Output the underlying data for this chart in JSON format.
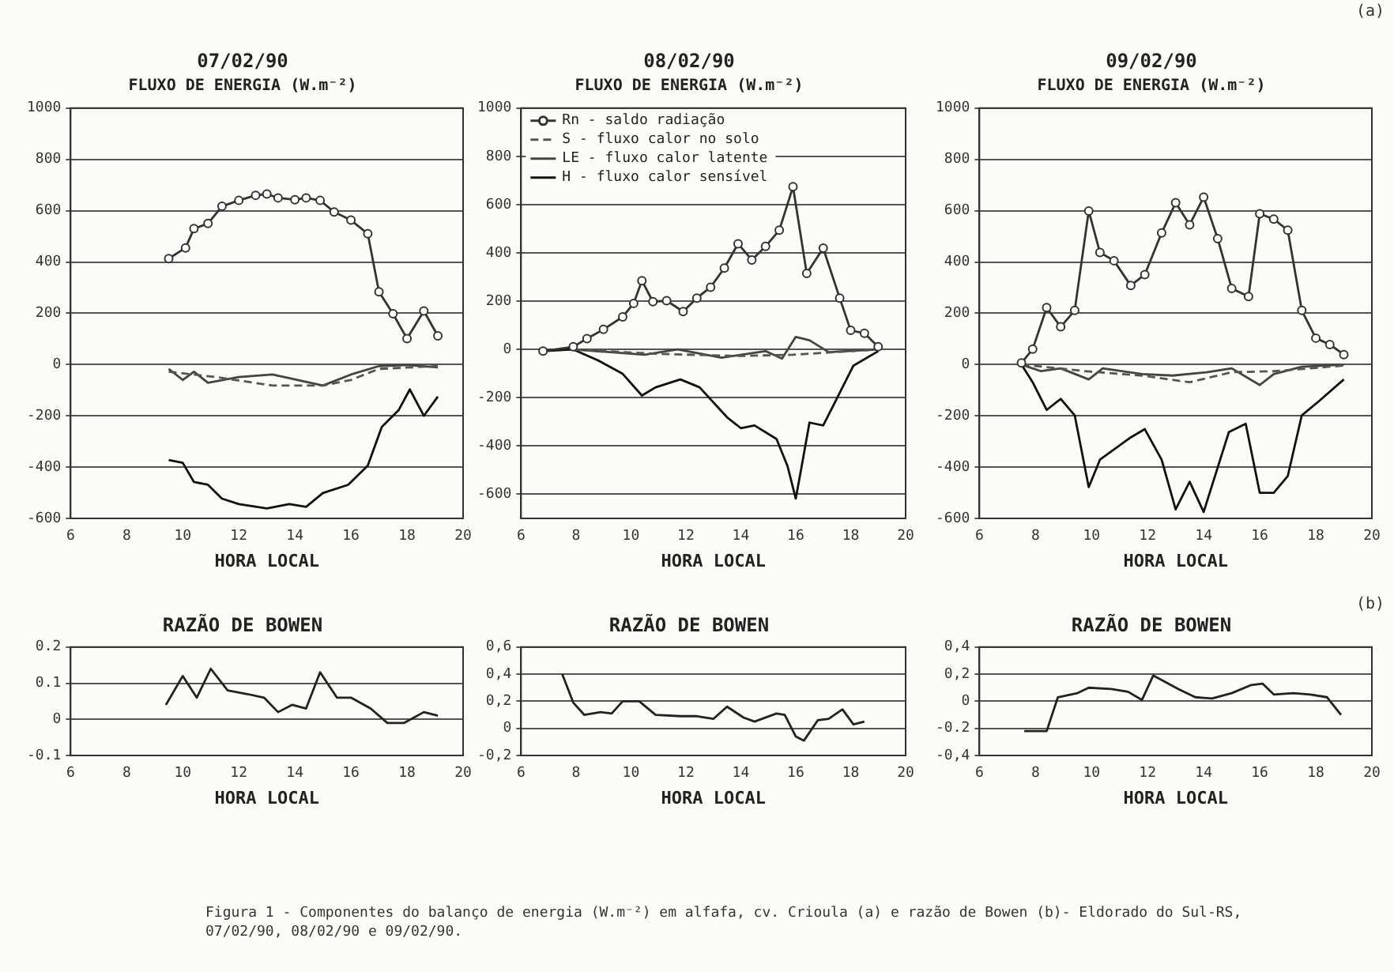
{
  "chart_data": [
    {
      "type": "line",
      "title": "07/02/90",
      "subtitle": "FLUXO DE ENERGIA (W.m⁻²)",
      "xlabel": "HORA LOCAL",
      "xlim": [
        6,
        20
      ],
      "xticks": [
        6,
        8,
        10,
        12,
        14,
        16,
        18,
        20
      ],
      "ylim": [
        -600,
        1000
      ],
      "yticks": [
        -600,
        -400,
        -200,
        0,
        200,
        400,
        600,
        800,
        1000
      ],
      "grid": "y",
      "legend": false,
      "series": [
        {
          "color": "#333333",
          "marker": "circle",
          "line_style": "solid",
          "x": [
            9.5,
            10.1,
            10.4,
            10.9,
            11.4,
            12,
            12.6,
            13,
            13.4,
            14,
            14.4,
            14.9,
            15.4,
            16,
            16.6,
            17,
            17.5,
            18,
            18.6,
            19.1
          ],
          "values": [
            413,
            455,
            530,
            550,
            617,
            640,
            660,
            665,
            650,
            643,
            650,
            640,
            595,
            563,
            510,
            284,
            198,
            101,
            209,
            112
          ]
        },
        {
          "color": "#555555",
          "marker": "none",
          "line_style": "dashed",
          "x": [
            9.5,
            11.2,
            13.2,
            15,
            16,
            17,
            19.1
          ],
          "values": [
            -28,
            -49,
            -82,
            -82,
            -60,
            -17,
            -6
          ]
        },
        {
          "color": "#444444",
          "marker": "none",
          "line_style": "solid",
          "x": [
            9.5,
            10,
            10.4,
            10.9,
            12,
            13.2,
            15,
            16,
            17,
            18,
            19.1
          ],
          "values": [
            -17,
            -60,
            -28,
            -71,
            -49,
            -39,
            -82,
            -39,
            -6,
            -2,
            -11
          ]
        },
        {
          "color": "#111111",
          "marker": "none",
          "line_style": "solid",
          "x": [
            9.5,
            10,
            10.4,
            10.9,
            11.4,
            12,
            13,
            13.8,
            14.4,
            15,
            15.9,
            16.6,
            17.1,
            17.7,
            18.1,
            18.6,
            19.1
          ],
          "values": [
            -372,
            -383,
            -458,
            -469,
            -523,
            -544,
            -561,
            -544,
            -555,
            -501,
            -469,
            -394,
            -243,
            -178,
            -97,
            -200,
            -125
          ]
        }
      ]
    },
    {
      "type": "line",
      "title": "08/02/90",
      "subtitle": "FLUXO DE ENERGIA (W.m⁻²)",
      "xlabel": "HORA LOCAL",
      "xlim": [
        6,
        20
      ],
      "xticks": [
        6,
        8,
        10,
        12,
        14,
        16,
        18,
        20
      ],
      "ylim": [
        -700,
        1000
      ],
      "yticks": [
        -600,
        -400,
        -200,
        0,
        200,
        400,
        600,
        800,
        1000
      ],
      "grid": "y",
      "legend": "top left",
      "series": [
        {
          "name": "Rn - saldo radiação",
          "color": "#333333",
          "marker": "circle",
          "line_style": "solid",
          "x": [
            6.8,
            7.9,
            8.4,
            9,
            9.7,
            10.1,
            10.4,
            10.8,
            11.3,
            11.9,
            12.4,
            12.9,
            13.4,
            13.9,
            14.4,
            14.9,
            15.4,
            15.9,
            16.4,
            17,
            17.6,
            18,
            18.5,
            19
          ],
          "values": [
            -7,
            11,
            45,
            83,
            135,
            191,
            285,
            198,
            202,
            157,
            213,
            258,
            337,
            438,
            371,
            427,
            494,
            674,
            315,
            420,
            213,
            79,
            67,
            11
          ]
        },
        {
          "name": "S - fluxo calor no solo",
          "color": "#555555",
          "marker": "none",
          "line_style": "dashed",
          "x": [
            7.9,
            10.9,
            13.9,
            15.9,
            17.4,
            19
          ],
          "values": [
            0,
            -18,
            -27,
            -22,
            -11,
            0
          ]
        },
        {
          "name": "LE - fluxo calor latente",
          "color": "#444444",
          "marker": "none",
          "line_style": "solid",
          "x": [
            7.9,
            10.5,
            11.7,
            13.3,
            14.9,
            15.5,
            16,
            16.5,
            17.2,
            19
          ],
          "values": [
            0,
            -22,
            0,
            -34,
            -7,
            -38,
            52,
            38,
            -11,
            0
          ]
        },
        {
          "name": "H - fluxo calor sensível",
          "color": "#111111",
          "marker": "none",
          "line_style": "solid",
          "x": [
            6.8,
            7.9,
            8.8,
            9.7,
            10.4,
            10.9,
            11.8,
            12.5,
            13.5,
            14,
            14.5,
            15.3,
            15.7,
            16,
            16.2,
            16.5,
            17,
            17.6,
            18.1,
            19
          ],
          "values": [
            -7,
            0,
            -45,
            -101,
            -191,
            -157,
            -124,
            -157,
            -281,
            -326,
            -315,
            -371,
            -483,
            -618,
            -494,
            -303,
            -315,
            -180,
            -67,
            -7
          ]
        }
      ]
    },
    {
      "type": "line",
      "title": "09/02/90",
      "subtitle": "FLUXO DE ENERGIA (W.m⁻²)",
      "xlabel": "HORA LOCAL",
      "xlim": [
        6,
        20
      ],
      "xticks": [
        6,
        8,
        10,
        12,
        14,
        16,
        18,
        20
      ],
      "ylim": [
        -600,
        1000
      ],
      "yticks": [
        -600,
        -400,
        -200,
        0,
        200,
        400,
        600,
        800,
        1000
      ],
      "grid": "y",
      "legend": false,
      "annotations": [
        "(a)"
      ],
      "series": [
        {
          "color": "#333333",
          "marker": "circle",
          "line_style": "solid",
          "x": [
            7.5,
            7.9,
            8.4,
            8.9,
            9.4,
            9.9,
            10.3,
            10.8,
            11.4,
            11.9,
            12.5,
            13,
            13.5,
            14,
            14.5,
            15,
            15.6,
            16,
            16.5,
            17,
            17.5,
            18,
            18.5,
            19
          ],
          "values": [
            6,
            60,
            222,
            147,
            211,
            599,
            437,
            405,
            308,
            351,
            513,
            631,
            545,
            653,
            491,
            297,
            265,
            588,
            567,
            524,
            211,
            103,
            78,
            39
          ]
        },
        {
          "color": "#555555",
          "marker": "none",
          "line_style": "dashed",
          "x": [
            7.5,
            9.8,
            11.8,
            13.5,
            15,
            16.5,
            19
          ],
          "values": [
            0,
            -26,
            -43,
            -69,
            -30,
            -26,
            -4
          ]
        },
        {
          "color": "#444444",
          "marker": "none",
          "line_style": "solid",
          "x": [
            7.5,
            8.2,
            8.9,
            9.9,
            10.4,
            11.8,
            12.9,
            14.1,
            15,
            16,
            16.5,
            17.5,
            19
          ],
          "values": [
            0,
            -26,
            -15,
            -58,
            -15,
            -37,
            -43,
            -30,
            -15,
            -80,
            -37,
            -9,
            0
          ]
        },
        {
          "color": "#111111",
          "marker": "none",
          "line_style": "solid",
          "x": [
            7.5,
            7.9,
            8.4,
            8.9,
            9.4,
            9.9,
            10.3,
            11.4,
            11.9,
            12.5,
            13,
            13.5,
            14,
            14.9,
            15.5,
            16,
            16.5,
            17,
            17.5,
            18.1,
            19
          ],
          "values": [
            0,
            -69,
            -177,
            -134,
            -198,
            -478,
            -371,
            -284,
            -252,
            -371,
            -565,
            -457,
            -575,
            -263,
            -231,
            -500,
            -500,
            -435,
            -198,
            -144,
            -58
          ]
        }
      ]
    },
    {
      "type": "line",
      "title": "RAZÃO DE BOWEN",
      "xlabel": "HORA LOCAL",
      "xlim": [
        6,
        20
      ],
      "xticks": [
        6,
        8,
        10,
        12,
        14,
        16,
        18,
        20
      ],
      "ylim": [
        -0.1,
        0.2
      ],
      "yticks": [
        -0.1,
        0,
        0.1,
        0.2
      ],
      "grid": "y",
      "legend": false,
      "series": [
        {
          "color": "#222222",
          "marker": "none",
          "line_style": "solid",
          "x": [
            9.4,
            10,
            10.5,
            11,
            11.6,
            12.3,
            12.9,
            13.4,
            13.9,
            14.4,
            14.9,
            15.5,
            16,
            16.7,
            17.3,
            17.9,
            18.6,
            19.1
          ],
          "values": [
            0.04,
            0.12,
            0.06,
            0.14,
            0.08,
            0.07,
            0.06,
            0.02,
            0.04,
            0.03,
            0.13,
            0.06,
            0.06,
            0.03,
            -0.01,
            -0.01,
            0.02,
            0.01
          ]
        }
      ]
    },
    {
      "type": "line",
      "title": "RAZÃO DE BOWEN",
      "xlabel": "HORA LOCAL",
      "xlim": [
        6,
        20
      ],
      "xticks": [
        6,
        8,
        10,
        12,
        14,
        16,
        18,
        20
      ],
      "ylim": [
        -0.2,
        0.6
      ],
      "yticks": [
        {
          "value": -0.2,
          "label": "-0,2"
        },
        0,
        {
          "value": 0.2,
          "label": "0,2"
        },
        {
          "value": 0.4,
          "label": "0,4"
        },
        {
          "value": 0.6,
          "label": "0,6"
        }
      ],
      "grid": "y",
      "legend": false,
      "series": [
        {
          "color": "#222222",
          "marker": "none",
          "line_style": "solid",
          "x": [
            7.5,
            7.9,
            8.3,
            8.9,
            9.3,
            9.7,
            10.3,
            10.9,
            11.8,
            12.4,
            13,
            13.5,
            14.1,
            14.5,
            15.3,
            15.6,
            16,
            16.3,
            16.8,
            17.2,
            17.7,
            18.1,
            18.5
          ],
          "values": [
            0.4,
            0.19,
            0.1,
            0.12,
            0.11,
            0.2,
            0.2,
            0.1,
            0.09,
            0.09,
            0.07,
            0.16,
            0.08,
            0.05,
            0.11,
            0.1,
            -0.06,
            -0.09,
            0.06,
            0.07,
            0.14,
            0.03,
            0.05
          ]
        }
      ]
    },
    {
      "type": "line",
      "title": "RAZÃO DE BOWEN",
      "xlabel": "HORA LOCAL",
      "xlim": [
        6,
        20
      ],
      "xticks": [
        6,
        8,
        10,
        12,
        14,
        16,
        18,
        20
      ],
      "ylim": [
        -0.4,
        0.4
      ],
      "yticks": [
        {
          "value": -0.4,
          "label": "-0,4"
        },
        {
          "value": -0.2,
          "label": "-0.2"
        },
        0,
        {
          "value": 0.2,
          "label": "0,2"
        },
        {
          "value": 0.4,
          "label": "0,4"
        }
      ],
      "grid": "y",
      "legend": false,
      "annotations": [
        "(b)",
        "Figura 1 - Componentes do balanço de energia (W.m⁻²) em alfafa, cv. Crioula (a) e razão de Bowen (b)- Eldorado do Sul-RS, 07/02/90, 08/02/90 e 09/02/90."
      ],
      "series": [
        {
          "color": "#222222",
          "marker": "none",
          "line_style": "solid",
          "x": [
            7.6,
            8.4,
            8.8,
            9.5,
            9.9,
            10.7,
            11.3,
            11.8,
            12.2,
            13.1,
            13.7,
            14.3,
            15,
            15.7,
            16.1,
            16.5,
            17.2,
            17.8,
            18.4,
            18.9
          ],
          "values": [
            -0.22,
            -0.22,
            0.03,
            0.06,
            0.1,
            0.09,
            0.07,
            0.01,
            0.19,
            0.09,
            0.03,
            0.02,
            0.06,
            0.12,
            0.13,
            0.05,
            0.06,
            0.05,
            0.03,
            -0.1
          ]
        }
      ]
    }
  ]
}
